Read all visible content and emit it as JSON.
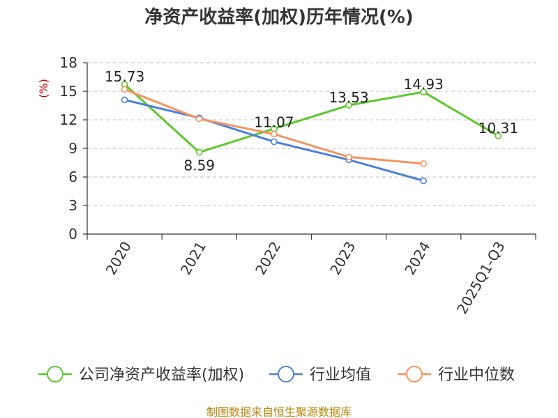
{
  "title": "净资产收益率(加权)历年情况(%)",
  "source": "制图数据来自恒生聚源数据库",
  "chart_data": {
    "type": "line",
    "categories": [
      "2020",
      "2021",
      "2022",
      "2023",
      "2024",
      "2025Q1-Q3"
    ],
    "ylabel": "(%)",
    "ylim": [
      0,
      18
    ],
    "yticks": [
      0,
      3,
      6,
      9,
      12,
      15,
      18
    ],
    "grid": true,
    "legend_position": "bottom",
    "series": [
      {
        "name": "公司净资产收益率(加权)",
        "color": "#5cc82a",
        "values": [
          15.73,
          8.59,
          11.07,
          13.53,
          14.93,
          10.31
        ],
        "labels": [
          "15.73",
          "8.59",
          "11.07",
          "13.53",
          "14.93",
          "10.31"
        ]
      },
      {
        "name": "行业均值",
        "color": "#4a7fdc",
        "values": [
          14.1,
          12.2,
          9.7,
          7.8,
          5.6,
          null
        ]
      },
      {
        "name": "行业中位数",
        "color": "#f5935e",
        "values": [
          15.2,
          12.1,
          10.5,
          8.1,
          7.4,
          null
        ]
      }
    ]
  }
}
